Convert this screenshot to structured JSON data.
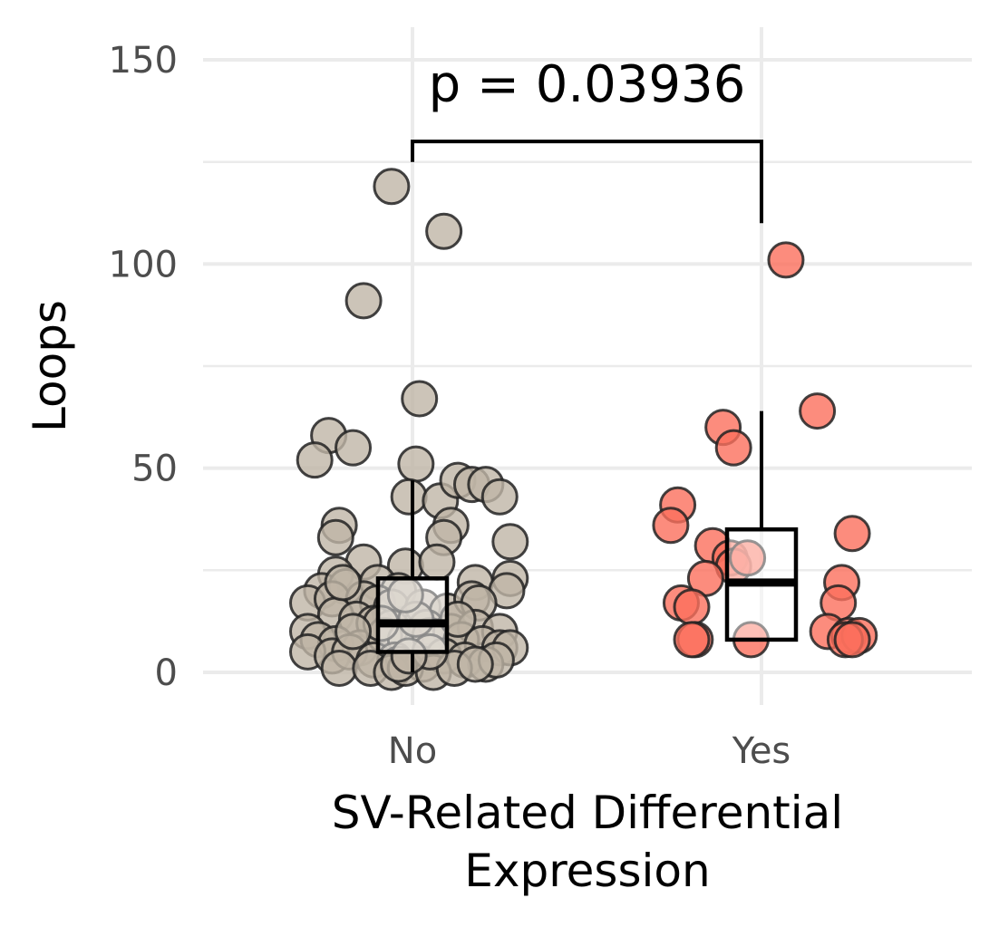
{
  "chart_data": {
    "type": "scatter",
    "subtype": "jitter-boxplot",
    "title": "",
    "xlabel_lines": [
      "SV-Related Differential",
      "Expression"
    ],
    "ylabel": "Loops",
    "categories": [
      "No",
      "Yes"
    ],
    "ylim": [
      -8,
      158
    ],
    "y_ticks": [
      0,
      50,
      100,
      150
    ],
    "grid": true,
    "legend": "none",
    "annotation": "p = 0.03936",
    "bracket": {
      "left_y": 125,
      "top_y": 130,
      "right_y": 110
    },
    "colors": {
      "No": "#bfb5a6",
      "Yes": "#fb6f5c",
      "edge": "#222222",
      "grid": "#ebebeb"
    },
    "boxes": [
      {
        "category": "No",
        "min": 0,
        "q1": 5,
        "median": 12,
        "q3": 23,
        "max": 47
      },
      {
        "category": "Yes",
        "min": 8,
        "q1": 8,
        "median": 22,
        "q3": 35,
        "max": 64
      }
    ],
    "series": [
      {
        "category": "No",
        "points": [
          [
            -0.06,
            119
          ],
          [
            0.09,
            108
          ],
          [
            -0.14,
            91
          ],
          [
            0.02,
            67
          ],
          [
            -0.24,
            58
          ],
          [
            -0.28,
            52
          ],
          [
            -0.17,
            55
          ],
          [
            0.01,
            51
          ],
          [
            -0.01,
            43
          ],
          [
            0.08,
            42
          ],
          [
            0.13,
            47
          ],
          [
            0.17,
            46
          ],
          [
            0.21,
            46
          ],
          [
            0.25,
            43
          ],
          [
            -0.21,
            36
          ],
          [
            -0.22,
            33
          ],
          [
            0.11,
            36
          ],
          [
            0.09,
            33
          ],
          [
            0.28,
            32
          ],
          [
            -0.14,
            27
          ],
          [
            -0.02,
            26
          ],
          [
            0.07,
            27
          ],
          [
            -0.22,
            24
          ],
          [
            0.28,
            23
          ],
          [
            -0.26,
            20
          ],
          [
            -0.19,
            21
          ],
          [
            -0.1,
            22
          ],
          [
            -0.04,
            20
          ],
          [
            0.18,
            22
          ],
          [
            0.27,
            20
          ],
          [
            -0.3,
            17
          ],
          [
            -0.23,
            18
          ],
          [
            -0.14,
            18
          ],
          [
            -0.1,
            17
          ],
          [
            -0.06,
            16
          ],
          [
            0.03,
            16
          ],
          [
            0.1,
            15
          ],
          [
            0.17,
            18
          ],
          [
            0.19,
            17
          ],
          [
            -0.22,
            14
          ],
          [
            -0.16,
            13
          ],
          [
            -0.11,
            12
          ],
          [
            -0.06,
            11
          ],
          [
            0.04,
            11
          ],
          [
            0.11,
            10
          ],
          [
            0.18,
            11
          ],
          [
            0.25,
            10
          ],
          [
            -0.3,
            10
          ],
          [
            -0.27,
            8
          ],
          [
            -0.22,
            7
          ],
          [
            -0.15,
            6
          ],
          [
            -0.08,
            9
          ],
          [
            -0.02,
            8
          ],
          [
            0.05,
            9
          ],
          [
            0.14,
            8
          ],
          [
            0.2,
            7
          ],
          [
            0.25,
            6
          ],
          [
            0.28,
            6
          ],
          [
            -0.3,
            5
          ],
          [
            -0.23,
            4
          ],
          [
            -0.18,
            5
          ],
          [
            -0.11,
            3
          ],
          [
            -0.05,
            3
          ],
          [
            0.03,
            2
          ],
          [
            0.09,
            4
          ],
          [
            0.15,
            3
          ],
          [
            0.21,
            2
          ],
          [
            0.24,
            3
          ],
          [
            -0.21,
            1
          ],
          [
            -0.12,
            1
          ],
          [
            -0.06,
            0
          ],
          [
            -0.02,
            1
          ],
          [
            0.06,
            0
          ],
          [
            0.12,
            1
          ],
          [
            0.18,
            2
          ],
          [
            -0.04,
            2
          ],
          [
            -0.09,
            12
          ],
          [
            0.01,
            13
          ],
          [
            -0.02,
            19
          ],
          [
            0.05,
            5
          ],
          [
            -0.01,
            4
          ],
          [
            -0.17,
            10
          ],
          [
            0.13,
            13
          ],
          [
            -0.2,
            22
          ]
        ]
      },
      {
        "category": "Yes",
        "points": [
          [
            0.07,
            101
          ],
          [
            0.16,
            64
          ],
          [
            -0.11,
            60
          ],
          [
            -0.08,
            55
          ],
          [
            -0.24,
            41
          ],
          [
            -0.26,
            36
          ],
          [
            0.26,
            34
          ],
          [
            -0.14,
            31
          ],
          [
            -0.09,
            28
          ],
          [
            -0.08,
            26
          ],
          [
            -0.04,
            28
          ],
          [
            -0.16,
            23
          ],
          [
            0.23,
            22
          ],
          [
            0.22,
            17
          ],
          [
            -0.23,
            17
          ],
          [
            -0.2,
            16
          ],
          [
            0.19,
            10
          ],
          [
            -0.19,
            8
          ],
          [
            -0.2,
            8
          ],
          [
            -0.03,
            8
          ],
          [
            0.25,
            9
          ],
          [
            0.28,
            9
          ],
          [
            0.24,
            8
          ],
          [
            0.26,
            8
          ]
        ]
      }
    ]
  }
}
